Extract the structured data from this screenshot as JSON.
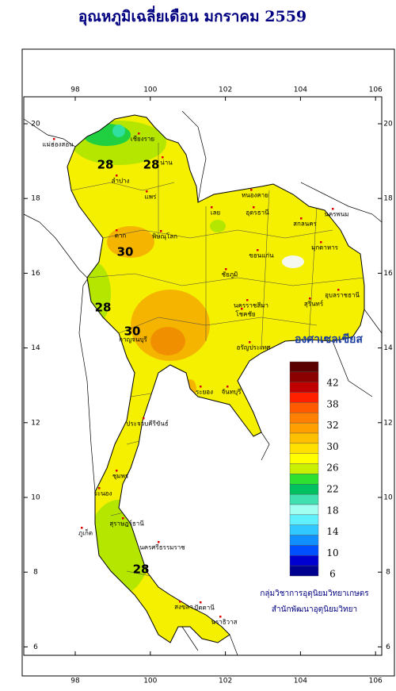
{
  "title": "อุณหภูมิเฉลี่ยเดือน  มกราคม 2559",
  "map": {
    "lon_ticks": [
      98,
      100,
      102,
      104,
      106
    ],
    "lat_ticks": [
      20,
      18,
      16,
      14,
      12,
      10,
      8,
      6
    ],
    "contour_labels": [
      "28",
      "28",
      "30",
      "28",
      "30",
      "28"
    ],
    "places": [
      "แม่ฮ่องสอน",
      "เชียงราย",
      "น่าน",
      "ลำปาง",
      "แพร่",
      "เลย",
      "หนองคาย",
      "อุดรธานี",
      "นครพนม",
      "สกลนคร",
      "ขอนแก่น",
      "มุกดาหาร",
      "ชัยภูมิ",
      "ตาก",
      "พิษณุโลก",
      "นครราชสีมา",
      "โชคชัย",
      "สุรินทร์",
      "อุบลราชธานี",
      "อรัญประเทศ",
      "กาญจนบุรี",
      "ระยอง",
      "จันทบุรี",
      "ประจวบคีรีขันธ์",
      "ชุมพร",
      "ระนอง",
      "สุราษฎร์ธานี",
      "ภูเก็ต",
      "นครศรีธรรมราช",
      "สงขลา",
      "ปัตตานี",
      "นราธิวาส"
    ]
  },
  "legend": {
    "unit": "องศาเซลเซียส",
    "colors": [
      "#5a0000",
      "#8b0000",
      "#c00000",
      "#ff2000",
      "#ff5a00",
      "#ff8000",
      "#ffa000",
      "#ffc000",
      "#ffe000",
      "#ffff00",
      "#c8f000",
      "#30e030",
      "#00c060",
      "#40e0b0",
      "#a0fff0",
      "#60f0ff",
      "#30c8ff",
      "#1090ff",
      "#0050ff",
      "#0000d0",
      "#000090"
    ],
    "labels": [
      42,
      38,
      32,
      30,
      26,
      22,
      18,
      14,
      10,
      6
    ]
  },
  "credits": [
    "กลุ่มวิชาการอุตุนิยมวิทยาเกษตร",
    "สำนักพัฒนาอุตุนิยมวิทยา"
  ]
}
